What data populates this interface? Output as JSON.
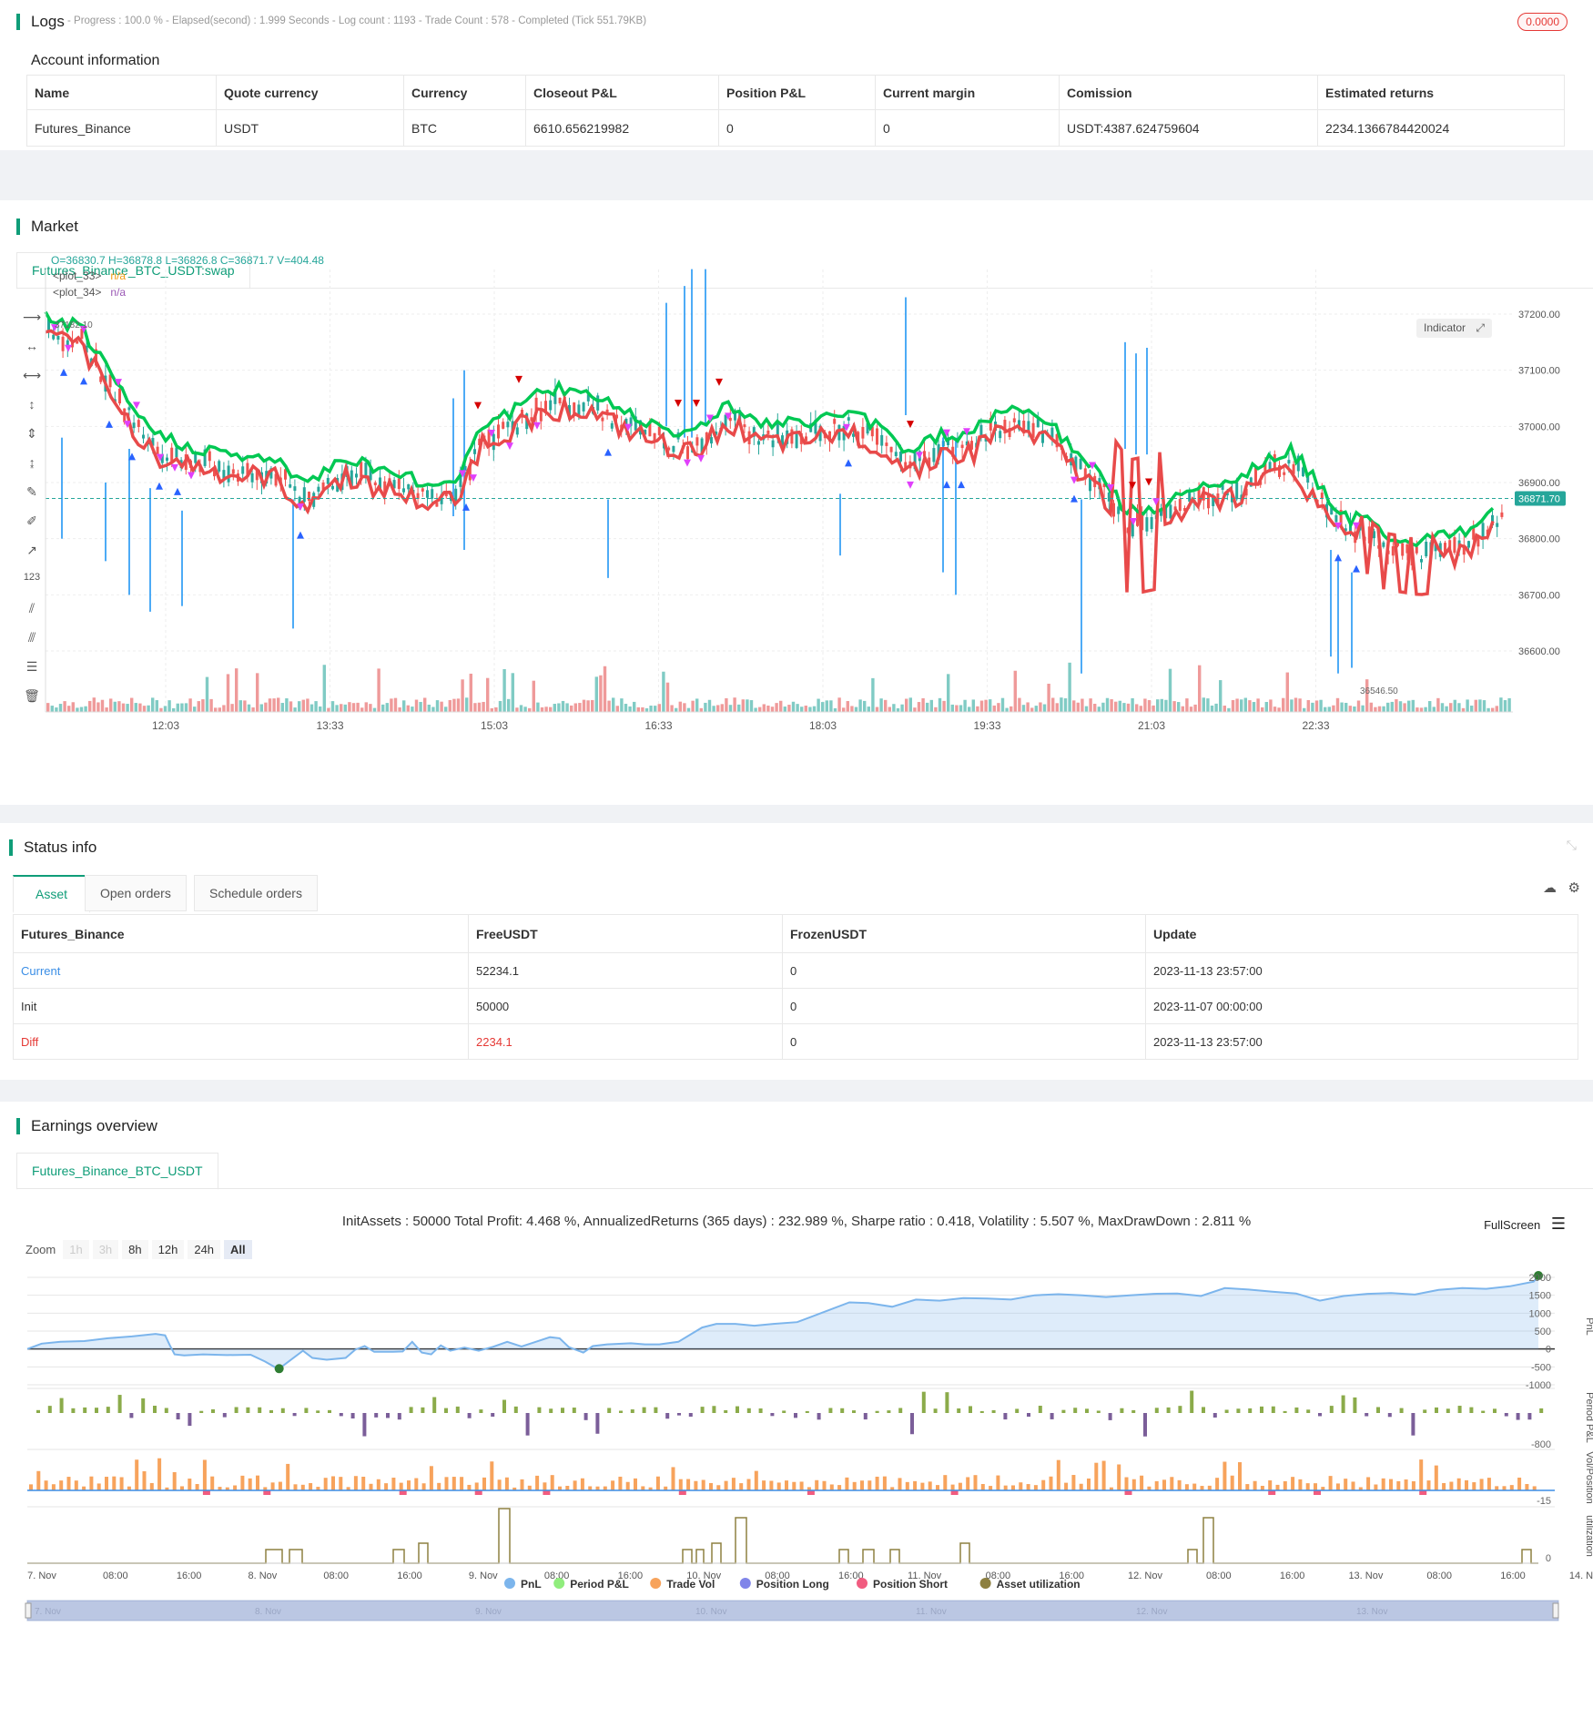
{
  "logs": {
    "title": "Logs",
    "status_line": "- Progress : 100.0 % - Elapsed(second) : 1.999 Seconds - Log count : 1193 - Trade Count : 578 - Completed (Tick 551.79KB)",
    "badge": "0.0000"
  },
  "account": {
    "title": "Account information",
    "headers": [
      "Name",
      "Quote currency",
      "Currency",
      "Closeout P&L",
      "Position P&L",
      "Current margin",
      "Comission",
      "Estimated returns"
    ],
    "row": [
      "Futures_Binance",
      "USDT",
      "BTC",
      "6610.656219982",
      "0",
      "0",
      "USDT:4387.624759604",
      "2234.1366784420024"
    ]
  },
  "market": {
    "title": "Market",
    "tab": "Futures_Binance_BTC_USDT:swap",
    "ohlc": "O=36830.7 H=36878.8 L=36826.8 C=36871.7 V=404.48",
    "legend": [
      {
        "name": "<plot_33>",
        "value": "n/a",
        "color": "#f39c12"
      },
      {
        "name": "<plot_34>",
        "value": "n/a",
        "color": "#9b59b6"
      }
    ],
    "indicator_btn": "Indicator",
    "price_labels": [
      "37200.00",
      "37100.00",
      "37000.00",
      "36900.00",
      "36800.00",
      "36700.00",
      "36600.00"
    ],
    "current_price": "36871.70",
    "time_labels": [
      "12:03",
      "13:33",
      "15:03",
      "16:33",
      "18:03",
      "19:33",
      "21:03",
      "22:33"
    ],
    "high_mark": "37182.10",
    "low_mark": "36546.50",
    "colors": {
      "green": "#00c853",
      "red": "#e84a4a",
      "blue": "#2196f3",
      "marker": "#e040fb"
    }
  },
  "status": {
    "title": "Status info",
    "tabs": [
      "Asset",
      "Open orders",
      "Schedule orders"
    ],
    "headers": [
      "Futures_Binance",
      "FreeUSDT",
      "FrozenUSDT",
      "Update"
    ],
    "rows": [
      [
        "Current",
        "52234.1",
        "0",
        "2023-11-13 23:57:00"
      ],
      [
        "Init",
        "50000",
        "0",
        "2023-11-07 00:00:00"
      ],
      [
        "Diff",
        "2234.1",
        "0",
        "2023-11-13 23:57:00"
      ]
    ]
  },
  "earnings": {
    "title": "Earnings overview",
    "tab": "Futures_Binance_BTC_USDT",
    "summary": "InitAssets : 50000 Total Profit: 4.468 %, AnnualizedReturns (365 days) : 232.989 %, Sharpe ratio : 0.418, Volatility : 5.507 %, MaxDrawDown : 2.811 %",
    "fullscreen": "FullScreen",
    "zoom_label": "Zoom",
    "zoom_buttons": [
      "1h",
      "3h",
      "8h",
      "12h",
      "24h",
      "All"
    ],
    "pnl_ticks": [
      "2000",
      "1500",
      "1000",
      "500",
      "0",
      "-500",
      "-1000"
    ],
    "period_tick": "-800",
    "vol_tick": "-15",
    "util_tick": "0",
    "axis_titles": [
      "PnL",
      "Period P&L",
      "Vol/Position",
      "utilization"
    ],
    "x_labels": [
      "7. Nov",
      "08:00",
      "16:00",
      "8. Nov",
      "08:00",
      "16:00",
      "9. Nov",
      "08:00",
      "16:00",
      "10. Nov",
      "08:00",
      "16:00",
      "11. Nov",
      "08:00",
      "16:00",
      "12. Nov",
      "08:00",
      "16:00",
      "13. Nov",
      "08:00",
      "16:00",
      "14. Nov"
    ],
    "legend": [
      {
        "name": "PnL",
        "color": "#7cb5ec"
      },
      {
        "name": "Period P&L",
        "color": "#90ed7d"
      },
      {
        "name": "Trade Vol",
        "color": "#f7a35c"
      },
      {
        "name": "Position Long",
        "color": "#8085e9"
      },
      {
        "name": "Position Short",
        "color": "#f15c80"
      },
      {
        "name": "Asset utilization",
        "color": "#8d8040"
      }
    ],
    "navigator_labels": [
      "7. Nov",
      "8. Nov",
      "9. Nov",
      "10. Nov",
      "11. Nov",
      "12. Nov",
      "13. Nov"
    ]
  }
}
